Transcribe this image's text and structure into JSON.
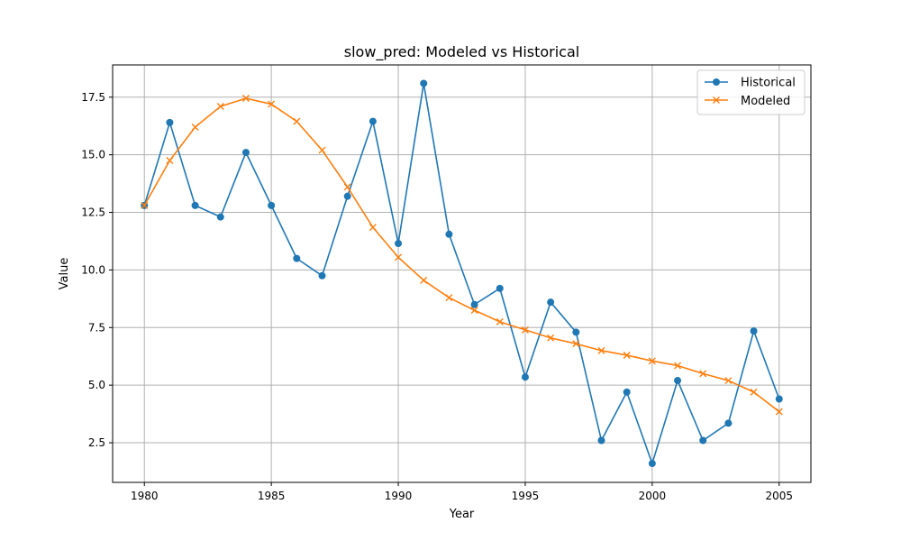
{
  "chart_data": {
    "type": "line",
    "title": "slow_pred: Modeled vs Historical",
    "xlabel": "Year",
    "ylabel": "Value",
    "xlim": [
      1978.75,
      2006.25
    ],
    "ylim": [
      0.78,
      18.9
    ],
    "xticks": [
      1980,
      1985,
      1990,
      1995,
      2000,
      2005
    ],
    "yticks": [
      2.5,
      5.0,
      7.5,
      10.0,
      12.5,
      15.0,
      17.5
    ],
    "ytick_labels": [
      "2.5",
      "5.0",
      "7.5",
      "10.0",
      "12.5",
      "15.0",
      "17.5"
    ],
    "grid": true,
    "legend_position": "upper-right",
    "x": [
      1980,
      1981,
      1982,
      1983,
      1984,
      1985,
      1986,
      1987,
      1988,
      1989,
      1990,
      1991,
      1992,
      1993,
      1994,
      1995,
      1996,
      1997,
      1998,
      1999,
      2000,
      2001,
      2002,
      2003,
      2004,
      2005
    ],
    "series": [
      {
        "name": "Historical",
        "marker": "circle",
        "color": "#1f77b4",
        "values": [
          12.8,
          16.4,
          12.8,
          12.3,
          15.1,
          12.8,
          10.5,
          9.75,
          13.2,
          16.45,
          11.15,
          18.1,
          11.55,
          8.5,
          9.2,
          5.35,
          8.6,
          7.3,
          2.6,
          4.7,
          1.6,
          5.2,
          2.6,
          3.35,
          7.35,
          4.4
        ]
      },
      {
        "name": "Modeled",
        "marker": "x",
        "color": "#ff7f0e",
        "values": [
          12.8,
          14.75,
          16.2,
          17.1,
          17.45,
          17.2,
          16.45,
          15.2,
          13.6,
          11.85,
          10.55,
          9.55,
          8.8,
          8.25,
          7.75,
          7.4,
          7.05,
          6.8,
          6.5,
          6.3,
          6.05,
          5.85,
          5.5,
          5.2,
          4.7,
          3.85
        ]
      }
    ]
  }
}
